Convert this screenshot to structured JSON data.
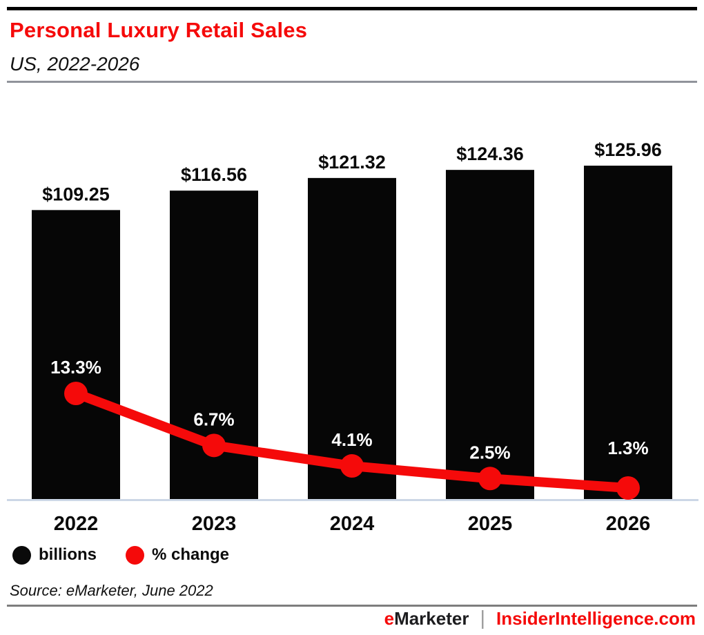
{
  "header": {
    "title": "Personal Luxury Retail Sales",
    "subtitle": "US, 2022-2026"
  },
  "chart_data": {
    "type": "combo",
    "title": "Personal Luxury Retail Sales",
    "subtitle": "US, 2022-2026",
    "categories": [
      "2022",
      "2023",
      "2024",
      "2025",
      "2026"
    ],
    "series": [
      {
        "name": "billions",
        "type": "bar",
        "values": [
          109.25,
          116.56,
          121.32,
          124.36,
          125.96
        ],
        "labels": [
          "$109.25",
          "$116.56",
          "$121.32",
          "$124.36",
          "$125.96"
        ]
      },
      {
        "name": "% change",
        "type": "line",
        "values": [
          13.3,
          6.7,
          4.1,
          2.5,
          1.3
        ],
        "labels": [
          "13.3%",
          "6.7%",
          "4.1%",
          "2.5%",
          "1.3%"
        ]
      }
    ],
    "ylim_bars": [
      0,
      125.96
    ],
    "grid": false,
    "legend_position": "bottom-left",
    "baseline_axis": "x"
  },
  "legend": {
    "items": [
      {
        "label": "billions",
        "color": "#0a0a0a"
      },
      {
        "label": "% change",
        "color": "#f50a0a"
      }
    ]
  },
  "source": "Source: eMarketer, June 2022",
  "footer": {
    "brand_first": "e",
    "brand_rest": "Marketer",
    "separator": "|",
    "site": "InsiderIntelligence.com"
  },
  "colors": {
    "accent_red": "#f50a0a",
    "bar_black": "#060606",
    "value_label_black": "#0a0a0a",
    "baseline_gray_blue": "#ccd7e6",
    "header_rule_gray": "#90939a",
    "footer_rule_gray": "#7d7d7d"
  }
}
